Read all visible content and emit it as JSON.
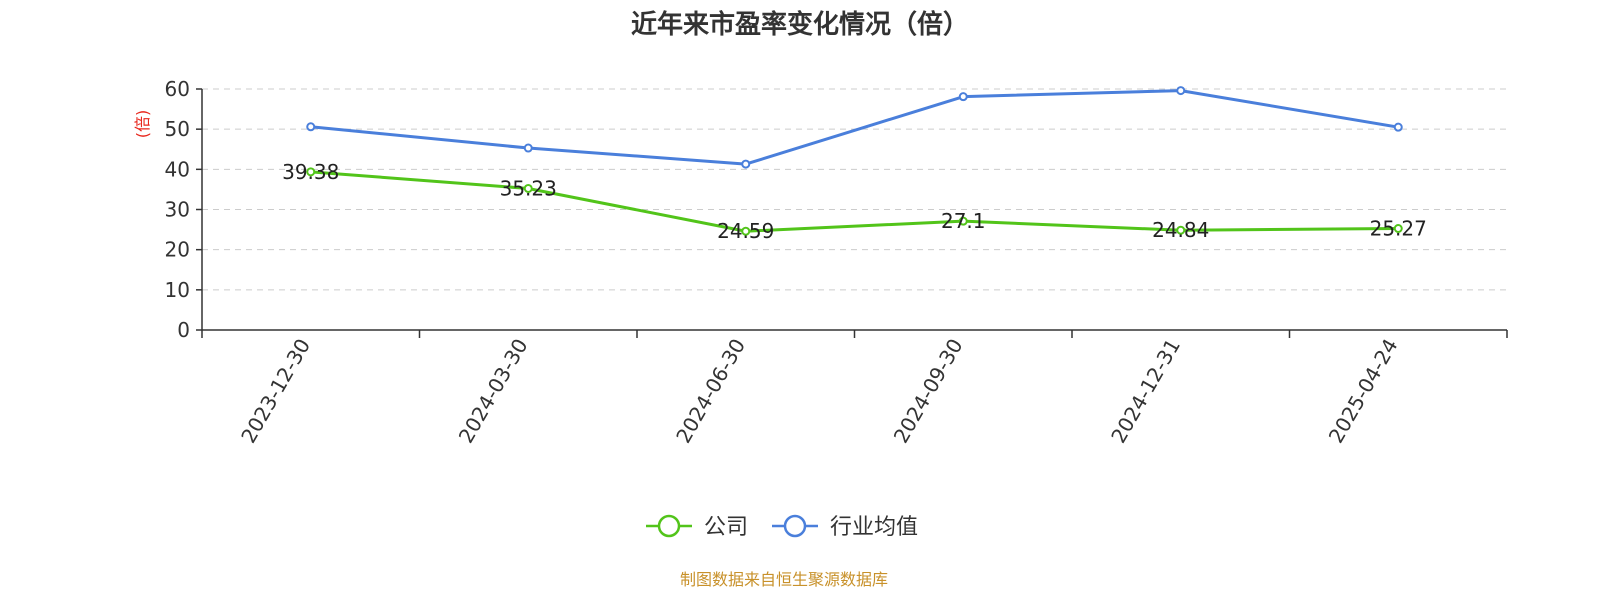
{
  "chart_data": {
    "type": "line",
    "title": "近年来市盈率变化情况（倍）",
    "ylabel": "(倍)",
    "xlabel": "",
    "categories": [
      "2023-12-30",
      "2024-03-30",
      "2024-06-30",
      "2024-09-30",
      "2024-12-31",
      "2025-04-24"
    ],
    "ylim": [
      0,
      60
    ],
    "yticks": [
      0,
      10,
      20,
      30,
      40,
      50,
      60
    ],
    "grid": true,
    "legend_position": "bottom-center",
    "series": [
      {
        "name": "公司",
        "color": "#52c41a",
        "values": [
          39.38,
          35.23,
          24.59,
          27.1,
          24.84,
          25.27
        ],
        "labels": [
          "39.38",
          "35.23",
          "24.59",
          "27.1",
          "24.84",
          "25.27"
        ]
      },
      {
        "name": "行业均值",
        "color": "#4a7fdb",
        "values": [
          50.6,
          45.3,
          41.3,
          58.1,
          59.6,
          50.5
        ]
      }
    ]
  },
  "colors": {
    "ylabel": "#e8261c",
    "source": "#c8912a",
    "axis": "#333333",
    "grid": "#cccccc"
  },
  "source_text": "制图数据来自恒生聚源数据库"
}
